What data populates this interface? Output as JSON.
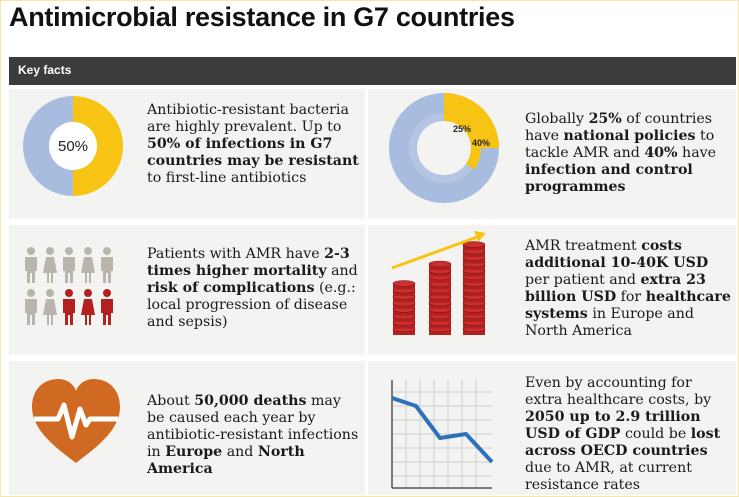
{
  "title": "Antimicrobial resistance in G7 countries",
  "bar_label": "Key facts",
  "colors": {
    "yellow": "#f7c414",
    "blue": "#a7bcdf",
    "red": "#b3201f",
    "orange": "#d06a23",
    "dark": "#3c3c3c"
  },
  "facts": [
    {
      "icon": "donut-50-percent-icon",
      "donut_label": "50%",
      "parts": [
        {
          "t": "Antibiotic-resistant bacteria are highly prevalent. Up to "
        },
        {
          "t": "50% of infections in G7 countries may be resistant",
          "b": true
        },
        {
          "t": " to first-line antibiotics"
        }
      ]
    },
    {
      "icon": "double-donut-icon",
      "labels": [
        "25%",
        "40%"
      ],
      "parts": [
        {
          "t": "Globally "
        },
        {
          "t": "25%",
          "b": true
        },
        {
          "t": " of countries have "
        },
        {
          "t": "national policies",
          "b": true
        },
        {
          "t": " to tackle AMR and "
        },
        {
          "t": "40%",
          "b": true
        },
        {
          "t": " have "
        },
        {
          "t": "infection and control programmes",
          "b": true
        }
      ]
    },
    {
      "icon": "people-icon",
      "parts": [
        {
          "t": "Patients with AMR have "
        },
        {
          "t": "2-3 times higher mortality",
          "b": true
        },
        {
          "t": " and "
        },
        {
          "t": "risk of complications",
          "b": true
        },
        {
          "t": " (e.g.: local progression of disease and sepsis)"
        }
      ]
    },
    {
      "icon": "coin-stacks-rising-icon",
      "parts": [
        {
          "t": "AMR treatment "
        },
        {
          "t": "costs additional 10-40K USD",
          "b": true
        },
        {
          "t": " per patient and "
        },
        {
          "t": "extra 23 billion USD",
          "b": true
        },
        {
          "t": " for "
        },
        {
          "t": "healthcare systems",
          "b": true
        },
        {
          "t": " in Europe and North America"
        }
      ]
    },
    {
      "icon": "heart-pulse-icon",
      "parts": [
        {
          "t": "About "
        },
        {
          "t": "50,000 deaths",
          "b": true
        },
        {
          "t": " may be caused each year by antibiotic-resistant infections in "
        },
        {
          "t": "Europe",
          "b": true
        },
        {
          "t": " and "
        },
        {
          "t": "North America",
          "b": true
        }
      ]
    },
    {
      "icon": "declining-line-chart-icon",
      "parts": [
        {
          "t": "Even by accounting for extra healthcare costs, by "
        },
        {
          "t": "2050 up to 2.9 trillion USD of GDP",
          "b": true
        },
        {
          "t": " could be "
        },
        {
          "t": "lost across OECD countries",
          "b": true
        },
        {
          "t": " due to AMR, at current resistance rates"
        }
      ]
    }
  ]
}
